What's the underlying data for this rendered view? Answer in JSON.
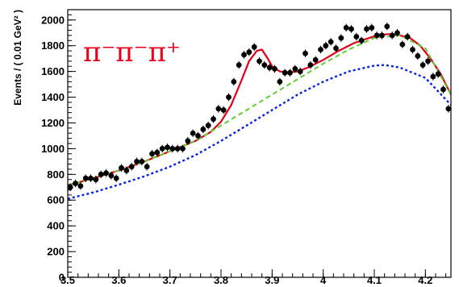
{
  "chart_data": {
    "type": "scatter",
    "title": "",
    "annotation": {
      "text": "π⁻π⁻π⁺",
      "color": "#e8001c"
    },
    "xlabel": "",
    "ylabel": "Events / ( 0.01 GeV² )",
    "xlim": [
      3.5,
      4.25
    ],
    "ylim": [
      0,
      2080
    ],
    "x_ticks": [
      "3.5",
      "3.6",
      "3.7",
      "3.8",
      "3.9",
      "4",
      "4.1",
      "4.2"
    ],
    "x_tick_values": [
      3.5,
      3.6,
      3.7,
      3.8,
      3.9,
      4.0,
      4.1,
      4.2
    ],
    "y_ticks": [
      "0",
      "200",
      "400",
      "600",
      "800",
      "1000",
      "1200",
      "1400",
      "1600",
      "1800",
      "2000"
    ],
    "y_tick_values": [
      0,
      200,
      400,
      600,
      800,
      1000,
      1200,
      1400,
      1600,
      1800,
      2000
    ],
    "grid": false,
    "legend": "none",
    "series": [
      {
        "kind": "points",
        "color": "#000000",
        "error_bar": 30,
        "x": [
          3.505,
          3.515,
          3.525,
          3.535,
          3.545,
          3.555,
          3.565,
          3.575,
          3.585,
          3.595,
          3.605,
          3.615,
          3.625,
          3.635,
          3.645,
          3.655,
          3.665,
          3.675,
          3.685,
          3.695,
          3.705,
          3.715,
          3.725,
          3.735,
          3.745,
          3.755,
          3.765,
          3.775,
          3.785,
          3.795,
          3.805,
          3.815,
          3.825,
          3.835,
          3.845,
          3.855,
          3.865,
          3.875,
          3.885,
          3.895,
          3.905,
          3.915,
          3.925,
          3.935,
          3.945,
          3.955,
          3.965,
          3.975,
          3.985,
          3.995,
          4.005,
          4.015,
          4.025,
          4.035,
          4.045,
          4.055,
          4.065,
          4.075,
          4.085,
          4.095,
          4.105,
          4.115,
          4.125,
          4.135,
          4.145,
          4.155,
          4.165,
          4.175,
          4.185,
          4.195,
          4.205,
          4.215,
          4.225,
          4.235,
          4.245
        ],
        "y": [
          700,
          730,
          710,
          770,
          770,
          760,
          800,
          810,
          790,
          770,
          850,
          830,
          860,
          900,
          900,
          860,
          960,
          970,
          1000,
          1010,
          1000,
          1000,
          1000,
          1060,
          1120,
          1100,
          1150,
          1180,
          1230,
          1310,
          1300,
          1400,
          1520,
          1650,
          1730,
          1750,
          1790,
          1680,
          1650,
          1630,
          1620,
          1520,
          1590,
          1590,
          1620,
          1600,
          1740,
          1650,
          1690,
          1770,
          1800,
          1830,
          1780,
          1860,
          1940,
          1930,
          1870,
          1840,
          1930,
          1940,
          1880,
          1880,
          1950,
          1880,
          1900,
          1810,
          1870,
          1770,
          1720,
          1650,
          1680,
          1560,
          1580,
          1460,
          1310
        ]
      },
      {
        "kind": "curve",
        "name": "",
        "color": "#e0001b",
        "dash": "solid",
        "x": [
          3.5,
          3.55,
          3.6,
          3.65,
          3.7,
          3.75,
          3.78,
          3.8,
          3.82,
          3.84,
          3.855,
          3.87,
          3.88,
          3.89,
          3.9,
          3.915,
          3.93,
          3.95,
          3.97,
          4.0,
          4.03,
          4.06,
          4.09,
          4.11,
          4.13,
          4.15,
          4.17,
          4.19,
          4.21,
          4.23,
          4.25
        ],
        "y": [
          715,
          770,
          830,
          900,
          980,
          1060,
          1130,
          1210,
          1340,
          1530,
          1680,
          1760,
          1770,
          1710,
          1640,
          1600,
          1590,
          1600,
          1630,
          1690,
          1760,
          1820,
          1860,
          1885,
          1890,
          1880,
          1860,
          1800,
          1700,
          1580,
          1420
        ]
      },
      {
        "kind": "curve",
        "name": "",
        "color": "#66cc33",
        "dash": "dashed",
        "x": [
          3.5,
          3.55,
          3.6,
          3.65,
          3.7,
          3.75,
          3.8,
          3.85,
          3.9,
          3.95,
          4.0,
          4.05,
          4.1,
          4.15,
          4.2,
          4.25
        ],
        "y": [
          715,
          770,
          830,
          900,
          980,
          1060,
          1180,
          1300,
          1420,
          1540,
          1660,
          1770,
          1860,
          1880,
          1780,
          1420
        ]
      },
      {
        "kind": "curve",
        "name": "",
        "color": "#0a22dd",
        "dash": "dotted",
        "x": [
          3.5,
          3.55,
          3.6,
          3.65,
          3.7,
          3.75,
          3.8,
          3.85,
          3.9,
          3.95,
          4.0,
          4.05,
          4.1,
          4.12,
          4.15,
          4.2,
          4.25
        ],
        "y": [
          610,
          660,
          720,
          785,
          860,
          950,
          1060,
          1180,
          1300,
          1420,
          1520,
          1600,
          1645,
          1650,
          1630,
          1550,
          1340
        ]
      }
    ]
  }
}
